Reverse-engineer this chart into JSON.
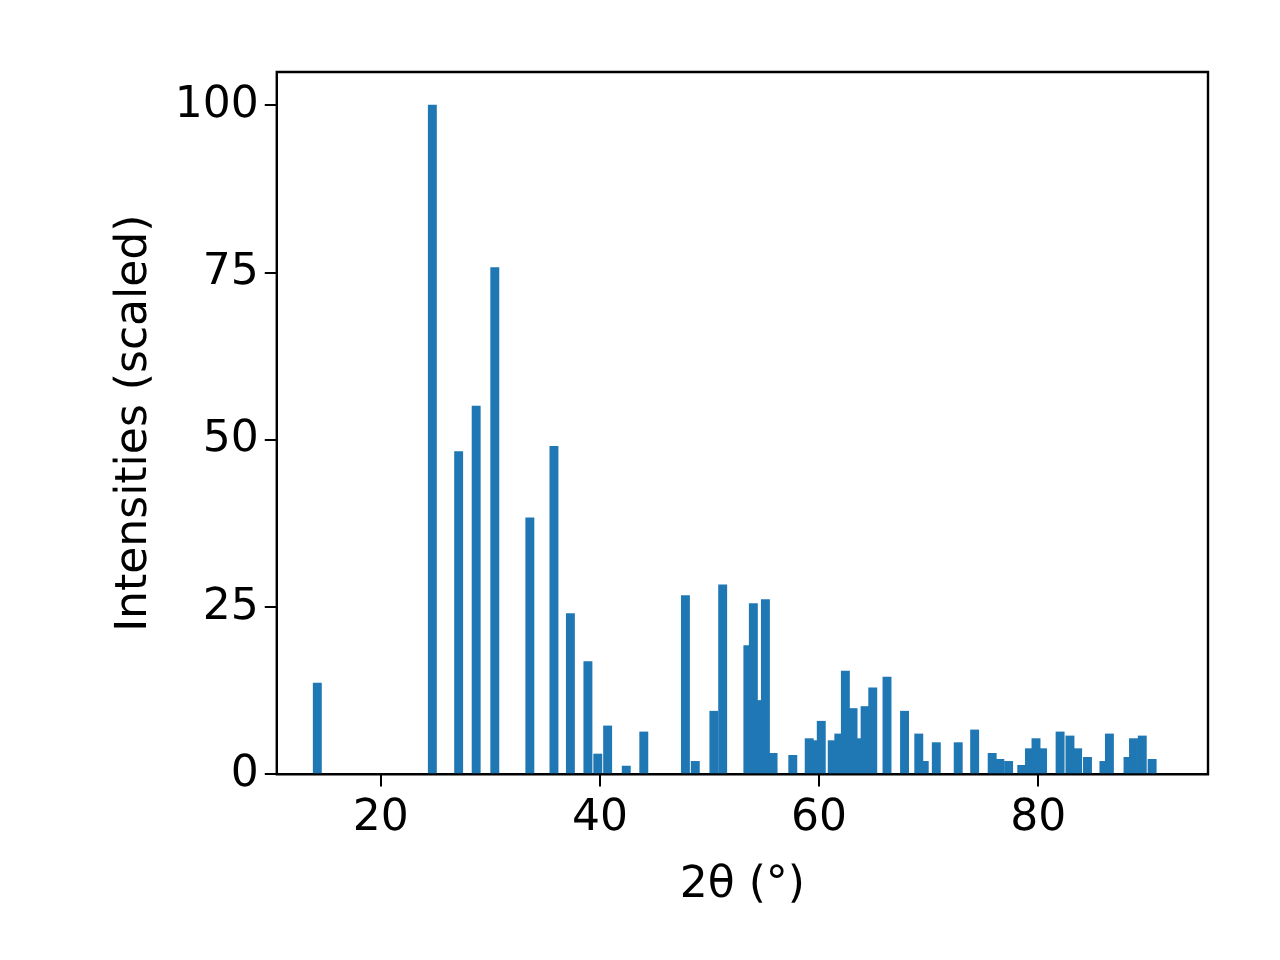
{
  "chart_data": {
    "type": "bar",
    "xlabel": "2θ (°)",
    "ylabel": "Intensities (scaled)",
    "color": "#1f77b4",
    "x": [
      14.2,
      24.7,
      27.1,
      28.7,
      30.4,
      33.6,
      35.8,
      37.3,
      38.9,
      39.8,
      40.7,
      42.4,
      44.0,
      47.8,
      48.7,
      50.4,
      51.2,
      53.5,
      54.0,
      54.5,
      55.1,
      55.8,
      57.6,
      59.1,
      59.8,
      60.2,
      61.2,
      61.8,
      62.4,
      63.1,
      63.5,
      64.2,
      64.9,
      66.2,
      67.8,
      69.1,
      69.6,
      70.7,
      72.7,
      74.2,
      75.8,
      76.5,
      77.3,
      78.5,
      79.2,
      79.8,
      80.4,
      82.0,
      82.9,
      83.6,
      84.5,
      86.0,
      86.5,
      88.2,
      88.7,
      89.5,
      90.4
    ],
    "values": [
      13.6,
      100,
      48.2,
      55,
      75.7,
      38.3,
      49,
      24,
      16.8,
      3,
      7.2,
      1.2,
      6.3,
      26.7,
      1.9,
      9.4,
      28.3,
      19.2,
      25.5,
      11,
      26.1,
      3.1,
      2.8,
      5.3,
      5,
      7.9,
      5,
      6,
      15.4,
      9.8,
      5.3,
      10.1,
      12.9,
      14.5,
      9.4,
      6,
      1.9,
      4.7,
      4.7,
      6.6,
      3.1,
      2.2,
      1.9,
      1.3,
      3.8,
      5.3,
      3.8,
      6.3,
      5.7,
      3.8,
      2.5,
      1.9,
      6,
      2.5,
      5.3,
      5.7,
      2.2
    ],
    "xlim": [
      10.5,
      95.5
    ],
    "xticks": [
      20,
      40,
      60,
      80
    ],
    "ylim": [
      0,
      105
    ],
    "yticks": [
      0,
      25,
      50,
      75,
      100
    ],
    "grid": false,
    "legend": false
  }
}
